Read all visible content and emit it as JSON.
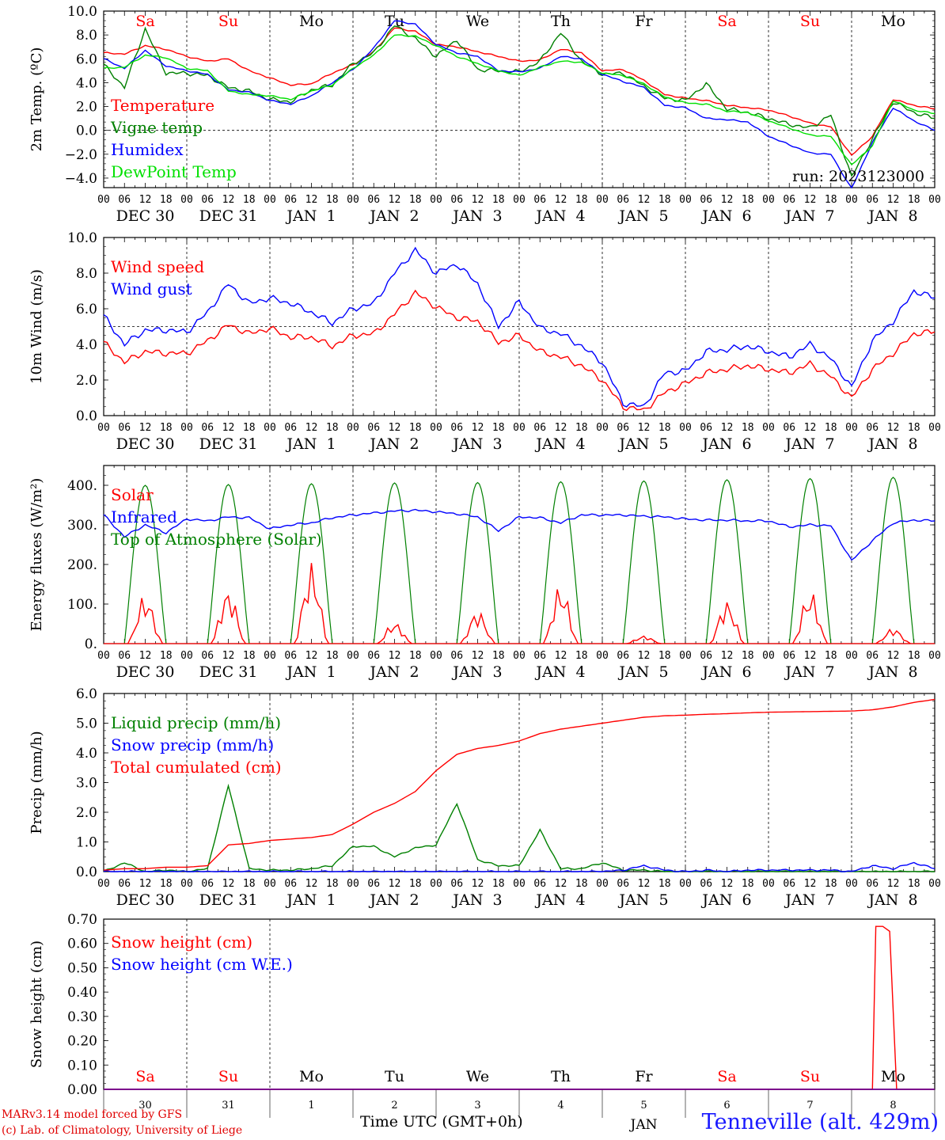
{
  "page": {
    "footer_model": "MARv3.14 model forced by GFS",
    "footer_lab": "(c) Lab. of Climatology, University of Liege",
    "footer_axis_title": "Time UTC (GMT+0h)",
    "station": "Tenneville (alt. 429m)"
  },
  "colors": {
    "red": "#ff0000",
    "green": "#008000",
    "blue": "#0000ff",
    "light_green": "#00e000",
    "black": "#000000"
  },
  "x_axis": {
    "days": [
      {
        "weekday": "Sa",
        "weekend": true,
        "label": "DEC 30",
        "daynum": "30"
      },
      {
        "weekday": "Su",
        "weekend": true,
        "label": "DEC 31",
        "daynum": "31"
      },
      {
        "weekday": "Mo",
        "weekend": false,
        "label": "JAN  1",
        "daynum": "1"
      },
      {
        "weekday": "Tu",
        "weekend": false,
        "label": "JAN  2",
        "daynum": "2"
      },
      {
        "weekday": "We",
        "weekend": false,
        "label": "JAN  3",
        "daynum": "3"
      },
      {
        "weekday": "Th",
        "weekend": false,
        "label": "JAN  4",
        "daynum": "4"
      },
      {
        "weekday": "Fr",
        "weekend": false,
        "label": "JAN  5",
        "daynum": "5"
      },
      {
        "weekday": "Sa",
        "weekend": true,
        "label": "JAN  6",
        "daynum": "6"
      },
      {
        "weekday": "Su",
        "weekend": true,
        "label": "JAN  7",
        "daynum": "7"
      },
      {
        "weekday": "Mo",
        "weekend": false,
        "label": "JAN  8",
        "daynum": "8"
      }
    ],
    "hour_labels": [
      "00",
      "06",
      "12",
      "18"
    ],
    "month_label": "JAN"
  },
  "chart_data": [
    {
      "type": "line",
      "id": "temperature",
      "ylabel": "2m Temp. (ºC)",
      "ylim": [
        -4.8,
        10.0
      ],
      "yticks": [
        -4.0,
        -2.0,
        0.0,
        2.0,
        4.0,
        6.0,
        8.0,
        10.0
      ],
      "ytick_labels": [
        "−4.0",
        "−2.0",
        "0.0",
        "2.0",
        "4.0",
        "6.0",
        "8.0",
        "10.0"
      ],
      "ref_line": 0,
      "annotation": "run: 2023123000",
      "x_hours": [
        0,
        6,
        12,
        18,
        24,
        30,
        36,
        42,
        48,
        54,
        60,
        66,
        72,
        78,
        84,
        90,
        96,
        102,
        108,
        114,
        120,
        126,
        132,
        138,
        144,
        150,
        156,
        162,
        168,
        174,
        180,
        186,
        192,
        198,
        204,
        210,
        216,
        222,
        228,
        234,
        240
      ],
      "series": [
        {
          "name": "Temperature",
          "color": "#ff0000",
          "values": [
            6.5,
            6.4,
            7.1,
            6.8,
            6.2,
            5.8,
            6.0,
            5.0,
            4.4,
            3.8,
            3.9,
            4.8,
            5.5,
            6.6,
            8.6,
            8.3,
            7.2,
            7.0,
            6.6,
            6.2,
            5.8,
            5.9,
            6.8,
            6.5,
            5.0,
            5.1,
            4.2,
            3.0,
            2.7,
            2.5,
            2.1,
            1.9,
            1.7,
            1.2,
            0.6,
            0.3,
            -2.1,
            -0.5,
            2.6,
            2.1,
            1.8
          ]
        },
        {
          "name": "Vigne temp",
          "color": "#008000",
          "values": [
            5.5,
            3.6,
            8.5,
            4.8,
            4.8,
            4.6,
            3.6,
            3.3,
            2.6,
            2.4,
            3.4,
            3.8,
            5.6,
            6.5,
            8.8,
            7.7,
            6.2,
            7.6,
            5.1,
            5.0,
            4.9,
            5.8,
            8.2,
            5.8,
            4.7,
            4.8,
            3.7,
            2.7,
            2.5,
            3.9,
            1.8,
            1.5,
            1.0,
            0.5,
            0.2,
            1.3,
            -3.9,
            -0.7,
            2.4,
            1.5,
            1.0
          ]
        },
        {
          "name": "Humidex",
          "color": "#0000ff",
          "values": [
            6.0,
            5.2,
            6.7,
            5.4,
            5.0,
            4.7,
            3.4,
            3.2,
            2.5,
            2.2,
            2.9,
            4.0,
            5.1,
            6.9,
            9.2,
            8.9,
            7.2,
            6.5,
            6.2,
            5.0,
            4.9,
            5.2,
            6.2,
            6.0,
            4.7,
            4.1,
            3.6,
            2.1,
            1.9,
            1.0,
            0.9,
            0.7,
            -0.5,
            -1.2,
            -1.9,
            -2.0,
            -4.9,
            -1.0,
            1.9,
            0.8,
            0.0
          ]
        },
        {
          "name": "DewPoint Temp",
          "color": "#00e000",
          "values": [
            5.2,
            5.3,
            6.3,
            6.1,
            5.2,
            5.0,
            3.3,
            3.0,
            2.9,
            2.6,
            3.3,
            3.8,
            5.2,
            6.3,
            8.0,
            7.9,
            7.1,
            6.2,
            5.6,
            5.0,
            4.6,
            5.3,
            5.8,
            5.7,
            4.8,
            4.6,
            3.9,
            2.8,
            2.3,
            2.2,
            1.6,
            1.5,
            0.8,
            0.2,
            -0.4,
            -0.5,
            -2.9,
            -1.3,
            2.5,
            1.7,
            1.4
          ]
        }
      ]
    },
    {
      "type": "line",
      "id": "wind",
      "ylabel": "10m Wind (m/s)",
      "ylim": [
        0.0,
        10.0
      ],
      "yticks": [
        0.0,
        2.0,
        4.0,
        6.0,
        8.0,
        10.0
      ],
      "ytick_labels": [
        "0.0",
        "2.0",
        "4.0",
        "6.0",
        "8.0",
        "10.0"
      ],
      "ref_line": 5.0,
      "x_hours": [
        0,
        6,
        12,
        18,
        24,
        30,
        36,
        42,
        48,
        54,
        60,
        66,
        72,
        78,
        84,
        90,
        96,
        102,
        108,
        114,
        120,
        126,
        132,
        138,
        144,
        150,
        156,
        162,
        168,
        174,
        180,
        186,
        192,
        198,
        204,
        210,
        216,
        222,
        228,
        234,
        240
      ],
      "series": [
        {
          "name": "Wind speed",
          "color": "#ff0000",
          "values": [
            4.1,
            3.0,
            3.6,
            3.5,
            3.5,
            4.2,
            5.1,
            4.6,
            4.9,
            4.4,
            4.4,
            3.9,
            4.5,
            4.6,
            5.7,
            6.9,
            6.1,
            5.5,
            5.3,
            4.1,
            4.5,
            3.6,
            3.3,
            2.8,
            2.0,
            0.5,
            0.3,
            1.3,
            1.8,
            2.4,
            2.6,
            2.8,
            2.6,
            2.4,
            2.9,
            2.2,
            1.0,
            2.6,
            3.5,
            4.6,
            4.7
          ]
        },
        {
          "name": "Wind gust",
          "color": "#0000ff",
          "values": [
            5.6,
            4.0,
            4.8,
            4.8,
            4.7,
            5.8,
            7.4,
            6.3,
            6.6,
            6.3,
            5.8,
            5.2,
            6.0,
            6.3,
            8.0,
            9.3,
            8.0,
            8.5,
            7.4,
            5.0,
            6.4,
            4.9,
            4.6,
            3.9,
            3.0,
            0.7,
            0.5,
            2.4,
            2.5,
            3.6,
            3.7,
            3.9,
            3.6,
            3.3,
            4.0,
            3.2,
            1.6,
            4.2,
            5.3,
            7.0,
            6.6
          ]
        }
      ]
    },
    {
      "type": "line",
      "id": "energy",
      "ylabel": "Energy fluxes (W/m²)",
      "ylim": [
        0,
        450
      ],
      "yticks": [
        0,
        100,
        200,
        300,
        400
      ],
      "ytick_labels": [
        "0.",
        "100.",
        "200.",
        "300.",
        "400."
      ],
      "solar_peaks": [
        125,
        140,
        205,
        55,
        85,
        150,
        20,
        110,
        135,
        40
      ],
      "toa_peaks": [
        400,
        402,
        404,
        406,
        407,
        409,
        411,
        414,
        417,
        420
      ],
      "infrared_hours": [
        0,
        6,
        12,
        18,
        24,
        30,
        36,
        42,
        48,
        54,
        60,
        66,
        72,
        78,
        84,
        90,
        96,
        102,
        108,
        114,
        120,
        126,
        132,
        138,
        144,
        150,
        156,
        162,
        168,
        174,
        180,
        186,
        192,
        198,
        204,
        210,
        216,
        222,
        228,
        234,
        240
      ],
      "series": [
        {
          "name": "Solar",
          "color": "#ff0000"
        },
        {
          "name": "Infrared",
          "color": "#0000ff",
          "values": [
            325,
            270,
            300,
            280,
            315,
            310,
            320,
            318,
            290,
            300,
            305,
            318,
            325,
            330,
            335,
            337,
            333,
            328,
            320,
            285,
            320,
            318,
            305,
            325,
            325,
            325,
            322,
            320,
            315,
            312,
            312,
            310,
            310,
            295,
            300,
            298,
            210,
            260,
            305,
            312,
            310
          ]
        },
        {
          "name": "Top of Atmosphere (Solar)",
          "color": "#008000"
        }
      ]
    },
    {
      "type": "line",
      "id": "precip",
      "ylabel": "Precip (mm/h)",
      "ylim": [
        0.0,
        6.0
      ],
      "yticks": [
        0.0,
        1.0,
        2.0,
        3.0,
        4.0,
        5.0,
        6.0
      ],
      "ytick_labels": [
        "0.0",
        "1.0",
        "2.0",
        "3.0",
        "4.0",
        "5.0",
        "6.0"
      ],
      "x_hours": [
        0,
        6,
        12,
        18,
        24,
        30,
        36,
        42,
        48,
        54,
        60,
        66,
        72,
        78,
        84,
        90,
        96,
        102,
        108,
        114,
        120,
        126,
        132,
        138,
        144,
        150,
        156,
        162,
        168,
        174,
        180,
        186,
        192,
        198,
        204,
        210,
        216,
        222,
        228,
        234,
        240
      ],
      "series": [
        {
          "name": "Liquid precip (mm/h)",
          "color": "#008000",
          "values": [
            0.0,
            0.3,
            0.0,
            0.05,
            0.0,
            0.1,
            2.9,
            0.1,
            0.05,
            0.05,
            0.1,
            0.2,
            0.85,
            0.85,
            0.5,
            0.8,
            0.9,
            2.3,
            0.4,
            0.2,
            0.2,
            1.4,
            0.1,
            0.1,
            0.3,
            0.05,
            0.05,
            0.0,
            0.0,
            0.0,
            0.0,
            0.0,
            0.0,
            0.0,
            0.0,
            0.0,
            0.0,
            0.0,
            0.0,
            0.0,
            0.0
          ]
        },
        {
          "name": "Snow precip (mm/h)",
          "color": "#0000ff",
          "values": [
            0.0,
            0.0,
            0.0,
            0.0,
            0.0,
            0.0,
            0.0,
            0.0,
            0.0,
            0.0,
            0.0,
            0.0,
            0.0,
            0.0,
            0.0,
            0.0,
            0.0,
            0.0,
            0.0,
            0.0,
            0.0,
            0.0,
            0.0,
            0.0,
            0.0,
            0.05,
            0.2,
            0.05,
            0.0,
            0.05,
            0.0,
            0.05,
            0.05,
            0.05,
            0.05,
            0.05,
            0.0,
            0.2,
            0.1,
            0.3,
            0.1
          ]
        },
        {
          "name": "Total cumulated (cm)",
          "color": "#ff0000",
          "values": [
            0.05,
            0.1,
            0.1,
            0.15,
            0.15,
            0.2,
            0.9,
            0.95,
            1.05,
            1.1,
            1.15,
            1.25,
            1.6,
            2.0,
            2.3,
            2.7,
            3.4,
            3.95,
            4.15,
            4.25,
            4.4,
            4.65,
            4.8,
            4.9,
            5.0,
            5.1,
            5.2,
            5.25,
            5.27,
            5.3,
            5.32,
            5.35,
            5.37,
            5.38,
            5.39,
            5.4,
            5.41,
            5.45,
            5.55,
            5.7,
            5.8
          ]
        }
      ]
    },
    {
      "type": "line",
      "id": "snow",
      "ylabel": "Snow height (cm)",
      "ylim": [
        0.0,
        0.7
      ],
      "yticks": [
        0.0,
        0.1,
        0.2,
        0.3,
        0.4,
        0.5,
        0.6,
        0.7
      ],
      "ytick_labels": [
        "0.00",
        "0.10",
        "0.20",
        "0.30",
        "0.40",
        "0.50",
        "0.60",
        "0.70"
      ],
      "series": [
        {
          "name": "Snow height (cm)",
          "color": "#ff0000",
          "x_hours": [
            0,
            222,
            223,
            225,
            227,
            229,
            240
          ],
          "values": [
            0,
            0,
            0.67,
            0.67,
            0.65,
            0,
            0
          ]
        },
        {
          "name": "Snow height (cm W.E.)",
          "color": "#0000ff",
          "x_hours": [
            0,
            240
          ],
          "values": [
            0,
            0
          ]
        }
      ]
    }
  ]
}
